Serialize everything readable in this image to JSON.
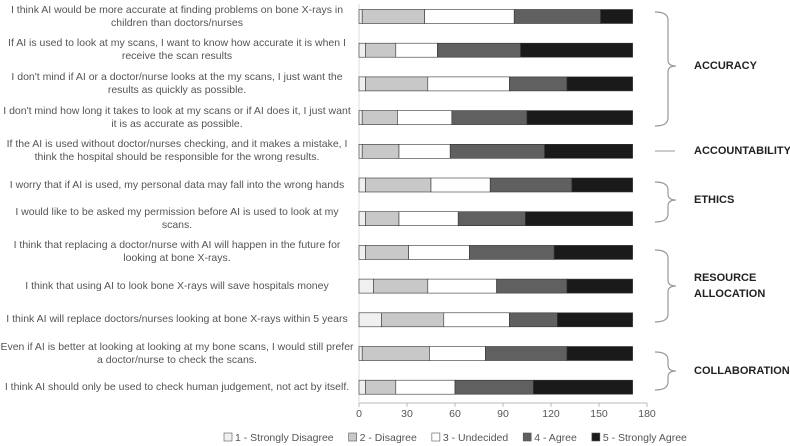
{
  "chart_data": {
    "type": "stacked_bar_horizontal",
    "categories": [
      "I think AI would be more accurate at finding problems on bone X-rays in children than doctors/nurses",
      "If AI is used to look at my scans, I want to know how accurate it is when I receive the scan results",
      "I don't mind if AI or a doctor/nurse looks at the my scans, I just want the results as quickly as possible.",
      "I don't mind how long it takes to look at my scans or if AI does it, I just want it is as accurate as possible.",
      "If the AI is used without doctor/nurses checking, and it makes a mistake, I think the hospital should be responsible for the wrong results.",
      "I worry that if AI is used, my personal data may fall into the wrong hands",
      "I would like to be asked my permission before AI is used to look at my scans.",
      "I think that replacing a doctor/nurse with AI will happen in the future for looking at bone X-rays.",
      "I think that using AI to look bone X-rays will save hospitals money",
      "I think AI will replace doctors/nurses looking at bone X-rays within 5 years",
      "Even if AI is better at looking at looking at my bone scans, I would still prefer a doctor/nurse to check the scans.",
      "I think AI should only be used to check human judgement, not act by itself."
    ],
    "series": [
      {
        "name": "1 - Strongly Disagree",
        "color": "#f0f0f0",
        "values": [
          2,
          4,
          4,
          2,
          2,
          4,
          4,
          4,
          9,
          14,
          2,
          4
        ]
      },
      {
        "name": "2 - Disagree",
        "color": "#c8c8c8",
        "values": [
          39,
          19,
          39,
          22,
          23,
          41,
          21,
          27,
          34,
          39,
          42,
          19
        ]
      },
      {
        "name": "3 - Undecided",
        "color": "#ffffff",
        "values": [
          56,
          26,
          51,
          34,
          32,
          37,
          37,
          38,
          43,
          41,
          35,
          37
        ]
      },
      {
        "name": "4 - Agree",
        "color": "#606060",
        "values": [
          54,
          52,
          36,
          47,
          59,
          51,
          42,
          53,
          44,
          30,
          51,
          49
        ]
      },
      {
        "name": "5 - Strongly Agree",
        "color": "#1a1a1a",
        "values": [
          20,
          70,
          41,
          66,
          55,
          38,
          67,
          49,
          41,
          47,
          41,
          62
        ]
      }
    ],
    "xlim": [
      0,
      180
    ],
    "xticks": [
      0,
      30,
      60,
      90,
      120,
      150,
      180
    ],
    "groups": [
      "ACCURACY",
      "ACCOUNTABILITY",
      "ETHICS",
      "RESOURCE ALLOCATION",
      "COLLABORATION"
    ]
  }
}
